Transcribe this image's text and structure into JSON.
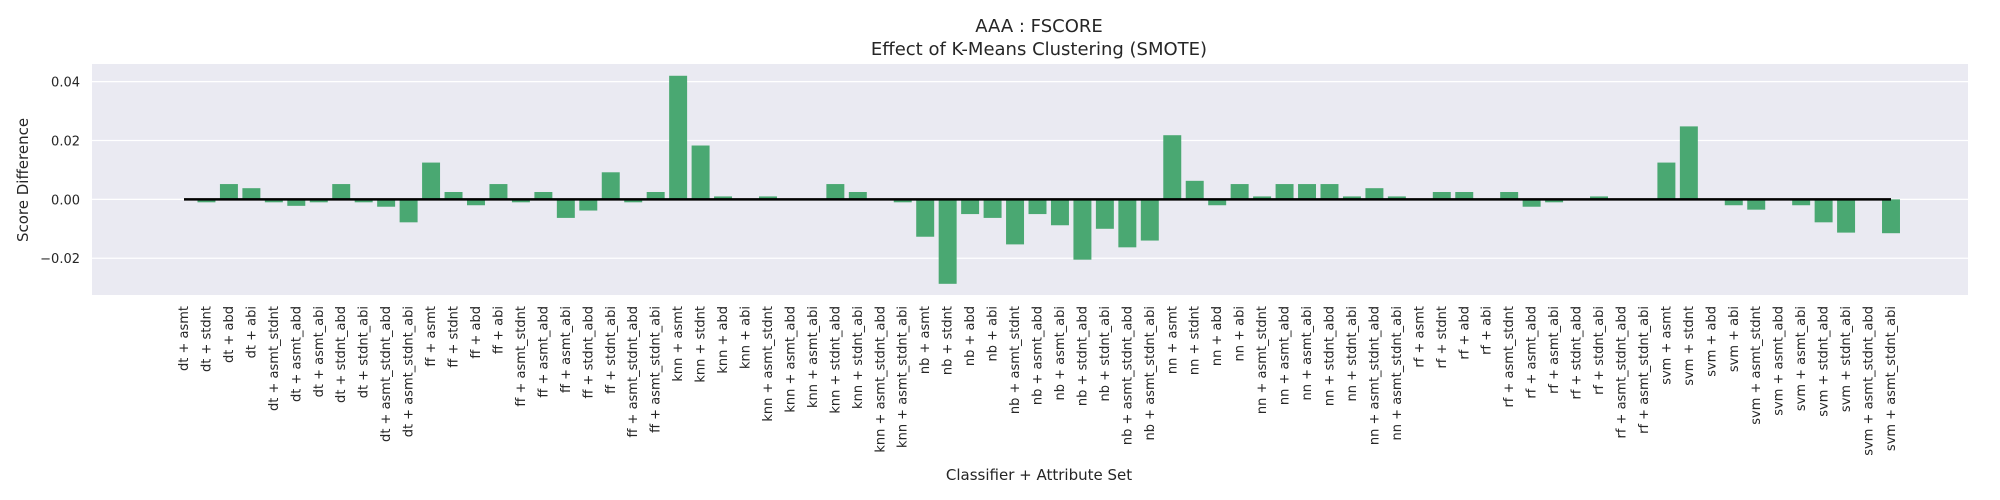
{
  "chart_data": {
    "type": "bar",
    "title": "AAA : FSCORE",
    "subtitle": "Effect of K-Means Clustering (SMOTE)",
    "xlabel": "Classifier + Attribute Set",
    "ylabel": "Score Difference",
    "ylim": [
      -0.0325,
      0.046
    ],
    "yticks": [
      -0.02,
      0.0,
      0.02,
      0.04
    ],
    "ytick_labels": [
      "−0.02",
      "0.00",
      "0.02",
      "0.04"
    ],
    "grid": true,
    "bar_color": "#4aa872",
    "background_color": "#eaeaf2",
    "categories": [
      "dt + asmt",
      "dt + stdnt",
      "dt + abd",
      "dt + abi",
      "dt + asmt_stdnt",
      "dt + asmt_abd",
      "dt + asmt_abi",
      "dt + stdnt_abd",
      "dt + stdnt_abi",
      "dt + asmt_stdnt_abd",
      "dt + asmt_stdnt_abi",
      "ff + asmt",
      "ff + stdnt",
      "ff + abd",
      "ff + abi",
      "ff + asmt_stdnt",
      "ff + asmt_abd",
      "ff + asmt_abi",
      "ff + stdnt_abd",
      "ff + stdnt_abi",
      "ff + asmt_stdnt_abd",
      "ff + asmt_stdnt_abi",
      "knn + asmt",
      "knn + stdnt",
      "knn + abd",
      "knn + abi",
      "knn + asmt_stdnt",
      "knn + asmt_abd",
      "knn + asmt_abi",
      "knn + stdnt_abd",
      "knn + stdnt_abi",
      "knn + asmt_stdnt_abd",
      "knn + asmt_stdnt_abi",
      "nb + asmt",
      "nb + stdnt",
      "nb + abd",
      "nb + abi",
      "nb + asmt_stdnt",
      "nb + asmt_abd",
      "nb + asmt_abi",
      "nb + stdnt_abd",
      "nb + stdnt_abi",
      "nb + asmt_stdnt_abd",
      "nb + asmt_stdnt_abi",
      "nn + asmt",
      "nn + stdnt",
      "nn + abd",
      "nn + abi",
      "nn + asmt_stdnt",
      "nn + asmt_abd",
      "nn + asmt_abi",
      "nn + stdnt_abd",
      "nn + stdnt_abi",
      "nn + asmt_stdnt_abd",
      "nn + asmt_stdnt_abi",
      "rf + asmt",
      "rf + stdnt",
      "rf + abd",
      "rf + abi",
      "rf + asmt_stdnt",
      "rf + asmt_abd",
      "rf + asmt_abi",
      "rf + stdnt_abd",
      "rf + stdnt_abi",
      "rf + asmt_stdnt_abd",
      "rf + asmt_stdnt_abi",
      "svm + asmt",
      "svm + stdnt",
      "svm + abd",
      "svm + abi",
      "svm + asmt_stdnt",
      "svm + asmt_abd",
      "svm + asmt_abi",
      "svm + stdnt_abd",
      "svm + stdnt_abi",
      "svm + asmt_stdnt_abd",
      "svm + asmt_stdnt_abi"
    ],
    "values": [
      0.0,
      -0.001,
      0.0052,
      0.0038,
      -0.001,
      -0.0022,
      -0.001,
      0.0052,
      -0.001,
      -0.0025,
      -0.0078,
      0.0125,
      0.0025,
      -0.002,
      0.0052,
      -0.001,
      0.0025,
      -0.0063,
      -0.0038,
      0.0092,
      -0.001,
      0.0025,
      0.042,
      0.0183,
      0.001,
      0.0,
      0.001,
      0.0,
      0.0,
      0.0052,
      0.0025,
      0.0,
      -0.001,
      -0.0127,
      -0.0287,
      -0.005,
      -0.0063,
      -0.0153,
      -0.005,
      -0.0088,
      -0.0205,
      -0.01,
      -0.0163,
      -0.014,
      0.0218,
      0.0063,
      -0.002,
      0.0052,
      0.001,
      0.0052,
      0.0052,
      0.0052,
      0.001,
      0.0038,
      0.001,
      0.0,
      0.0025,
      0.0025,
      0.0,
      0.0025,
      -0.0025,
      -0.001,
      0.0,
      0.001,
      0.0,
      0.0,
      0.0125,
      0.0248,
      0.0,
      -0.002,
      -0.0035,
      0.0,
      -0.002,
      -0.0078,
      -0.0113,
      0.0,
      -0.0115
    ]
  }
}
